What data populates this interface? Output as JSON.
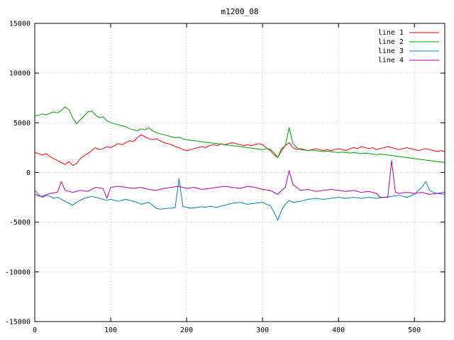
{
  "figure": {
    "background": "#ffffff",
    "border_color": "#000000",
    "grid_color": "#c4c4c4",
    "text_color": "#000000"
  },
  "chart_data": {
    "type": "line",
    "title": "m1200_08",
    "xlabel": "",
    "ylabel": "",
    "xlim": [
      0,
      540
    ],
    "ylim": [
      -15000,
      15000
    ],
    "x_ticks": [
      0,
      100,
      200,
      300,
      400,
      500
    ],
    "y_ticks": [
      -15000,
      -10000,
      -5000,
      0,
      5000,
      10000,
      15000
    ],
    "grid": true,
    "legend_position": "top-right",
    "x": [
      0,
      5,
      10,
      15,
      20,
      25,
      30,
      35,
      40,
      45,
      50,
      55,
      60,
      65,
      70,
      75,
      80,
      85,
      90,
      95,
      100,
      105,
      110,
      115,
      120,
      125,
      130,
      135,
      140,
      145,
      150,
      155,
      160,
      165,
      170,
      175,
      180,
      185,
      190,
      195,
      200,
      205,
      210,
      215,
      220,
      225,
      230,
      235,
      240,
      245,
      250,
      255,
      260,
      265,
      270,
      275,
      280,
      285,
      290,
      295,
      300,
      305,
      310,
      315,
      320,
      325,
      330,
      335,
      340,
      345,
      350,
      355,
      360,
      365,
      370,
      375,
      380,
      385,
      390,
      395,
      400,
      405,
      410,
      415,
      420,
      425,
      430,
      435,
      440,
      445,
      450,
      455,
      460,
      465,
      470,
      475,
      480,
      485,
      490,
      495,
      500,
      505,
      510,
      515,
      520,
      525,
      530,
      535,
      540
    ],
    "series": [
      {
        "name": "line 1",
        "color": "#ff0000",
        "values": [
          2000,
          1900,
          1750,
          1900,
          1600,
          1400,
          1200,
          1000,
          800,
          1100,
          700,
          900,
          1400,
          1700,
          1900,
          2200,
          2500,
          2300,
          2400,
          2600,
          2500,
          2700,
          2900,
          2800,
          3000,
          3200,
          3100,
          3500,
          3800,
          3600,
          3400,
          3300,
          3400,
          3200,
          3000,
          2900,
          2800,
          2600,
          2500,
          2300,
          2200,
          2300,
          2400,
          2500,
          2600,
          2500,
          2700,
          2800,
          2700,
          2900,
          2800,
          2900,
          3000,
          2900,
          2800,
          2700,
          2800,
          2700,
          2800,
          2900,
          2800,
          2500,
          2200,
          1800,
          1500,
          2200,
          2700,
          3000,
          2500,
          2300,
          2400,
          2300,
          2200,
          2300,
          2400,
          2300,
          2200,
          2300,
          2200,
          2300,
          2400,
          2300,
          2200,
          2400,
          2500,
          2400,
          2600,
          2500,
          2400,
          2500,
          2300,
          2400,
          2500,
          2600,
          2500,
          2400,
          2300,
          2400,
          2500,
          2400,
          2300,
          2200,
          2300,
          2400,
          2300,
          2200,
          2100,
          2200,
          2100
        ]
      },
      {
        "name": "line 2",
        "color": "#00a000",
        "values": [
          5700,
          5750,
          5900,
          5800,
          5950,
          6100,
          6000,
          6250,
          6600,
          6300,
          5500,
          4900,
          5300,
          5700,
          6100,
          6200,
          5800,
          5500,
          5600,
          5200,
          5000,
          4900,
          4800,
          4700,
          4600,
          4400,
          4300,
          4200,
          4400,
          4300,
          4500,
          4200,
          4000,
          3900,
          3800,
          3700,
          3600,
          3500,
          3550,
          3400,
          3300,
          3250,
          3200,
          3150,
          3100,
          3050,
          3000,
          2950,
          2900,
          2850,
          2800,
          2750,
          2700,
          2650,
          2600,
          2550,
          2500,
          2450,
          2400,
          2350,
          2300,
          2400,
          2350,
          2000,
          1500,
          2400,
          2700,
          4500,
          2900,
          2500,
          2300,
          2250,
          2200,
          2250,
          2200,
          2150,
          2100,
          2150,
          2100,
          2050,
          2000,
          2050,
          2000,
          1950,
          2000,
          1950,
          1900,
          1950,
          1900,
          1850,
          1800,
          1850,
          1800,
          1750,
          1700,
          1650,
          1600,
          1550,
          1500,
          1450,
          1400,
          1350,
          1300,
          1250,
          1200,
          1150,
          1100,
          1050,
          1000
        ]
      },
      {
        "name": "line 3",
        "color": "#0080c0",
        "values": [
          -1800,
          -2200,
          -2500,
          -2300,
          -2400,
          -2600,
          -2500,
          -2700,
          -2900,
          -3100,
          -3300,
          -3000,
          -2800,
          -2600,
          -2500,
          -2400,
          -2500,
          -2600,
          -2700,
          -2800,
          -2700,
          -2800,
          -2900,
          -2800,
          -2700,
          -2800,
          -2900,
          -3000,
          -3200,
          -3100,
          -3000,
          -3300,
          -3600,
          -3700,
          -3650,
          -3600,
          -3600,
          -3500,
          -600,
          -3400,
          -3500,
          -3600,
          -3550,
          -3500,
          -3450,
          -3500,
          -3400,
          -3450,
          -3500,
          -3400,
          -3300,
          -3200,
          -3100,
          -3050,
          -3000,
          -3100,
          -3200,
          -3150,
          -3100,
          -3050,
          -3000,
          -3200,
          -3300,
          -4000,
          -4800,
          -3800,
          -3200,
          -2800,
          -3000,
          -2950,
          -2900,
          -2800,
          -2700,
          -2650,
          -2600,
          -2650,
          -2700,
          -2650,
          -2600,
          -2550,
          -2500,
          -2550,
          -2600,
          -2550,
          -2500,
          -2550,
          -2600,
          -2550,
          -2500,
          -2550,
          -2600,
          -2550,
          -2500,
          -2450,
          -2400,
          -2350,
          -2300,
          -2400,
          -2500,
          -2350,
          -2200,
          -1800,
          -1500,
          -900,
          -1800,
          -2000,
          -2100,
          -2150,
          -2200
        ]
      },
      {
        "name": "line 4",
        "color": "#b000b0",
        "values": [
          -2200,
          -2350,
          -2400,
          -2250,
          -2100,
          -2050,
          -2000,
          -900,
          -1800,
          -1900,
          -2000,
          -1900,
          -1800,
          -1850,
          -1900,
          -1700,
          -1500,
          -1550,
          -1600,
          -2600,
          -1500,
          -1450,
          -1400,
          -1450,
          -1500,
          -1550,
          -1600,
          -1550,
          -1500,
          -1600,
          -1700,
          -1750,
          -1800,
          -1700,
          -1600,
          -1550,
          -1500,
          -1450,
          -1400,
          -1500,
          -1600,
          -1550,
          -1500,
          -1600,
          -1700,
          -1650,
          -1600,
          -1550,
          -1500,
          -1450,
          -1400,
          -1450,
          -1500,
          -1550,
          -1600,
          -1500,
          -1400,
          -1450,
          -1500,
          -1600,
          -1700,
          -1750,
          -1800,
          -2000,
          -2200,
          -1800,
          -1500,
          200,
          -1200,
          -1500,
          -1800,
          -1750,
          -1700,
          -1800,
          -1900,
          -1850,
          -1800,
          -1750,
          -1700,
          -1750,
          -1800,
          -1850,
          -1900,
          -1850,
          -1800,
          -1900,
          -2000,
          -1950,
          -1900,
          -2000,
          -2100,
          -2500,
          -2500,
          -2500,
          1200,
          -2000,
          -2100,
          -2050,
          -2000,
          -2050,
          -2100,
          -2050,
          -2000,
          -2100,
          -2200,
          -2150,
          -2100,
          -2050,
          -2000
        ]
      }
    ]
  }
}
